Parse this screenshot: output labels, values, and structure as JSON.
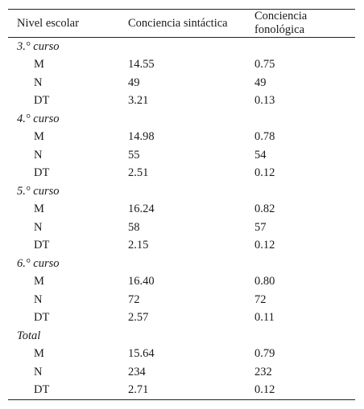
{
  "table": {
    "headers": [
      "Nivel escolar",
      "Conciencia sintáctica",
      "Conciencia fonológica"
    ],
    "groups": [
      {
        "label": "3.° curso",
        "rows": [
          {
            "stat": "M",
            "sintactica": "14.55",
            "fonologica": "0.75"
          },
          {
            "stat": "N",
            "sintactica": "49",
            "fonologica": "49"
          },
          {
            "stat": "DT",
            "sintactica": "3.21",
            "fonologica": "0.13"
          }
        ]
      },
      {
        "label": "4.° curso",
        "rows": [
          {
            "stat": "M",
            "sintactica": "14.98",
            "fonologica": "0.78"
          },
          {
            "stat": "N",
            "sintactica": "55",
            "fonologica": "54"
          },
          {
            "stat": "DT",
            "sintactica": "2.51",
            "fonologica": "0.12"
          }
        ]
      },
      {
        "label": "5.° curso",
        "rows": [
          {
            "stat": "M",
            "sintactica": "16.24",
            "fonologica": "0.82"
          },
          {
            "stat": "N",
            "sintactica": "58",
            "fonologica": "57"
          },
          {
            "stat": "DT",
            "sintactica": "2.15",
            "fonologica": "0.12"
          }
        ]
      },
      {
        "label": "6.° curso",
        "rows": [
          {
            "stat": "M",
            "sintactica": "16.40",
            "fonologica": "0.80"
          },
          {
            "stat": "N",
            "sintactica": "72",
            "fonologica": "72"
          },
          {
            "stat": "DT",
            "sintactica": "2.57",
            "fonologica": "0.11"
          }
        ]
      },
      {
        "label": "Total",
        "rows": [
          {
            "stat": "M",
            "sintactica": "15.64",
            "fonologica": "0.79"
          },
          {
            "stat": "N",
            "sintactica": "234",
            "fonologica": "232"
          },
          {
            "stat": "DT",
            "sintactica": "2.71",
            "fonologica": "0.12"
          }
        ]
      }
    ]
  }
}
